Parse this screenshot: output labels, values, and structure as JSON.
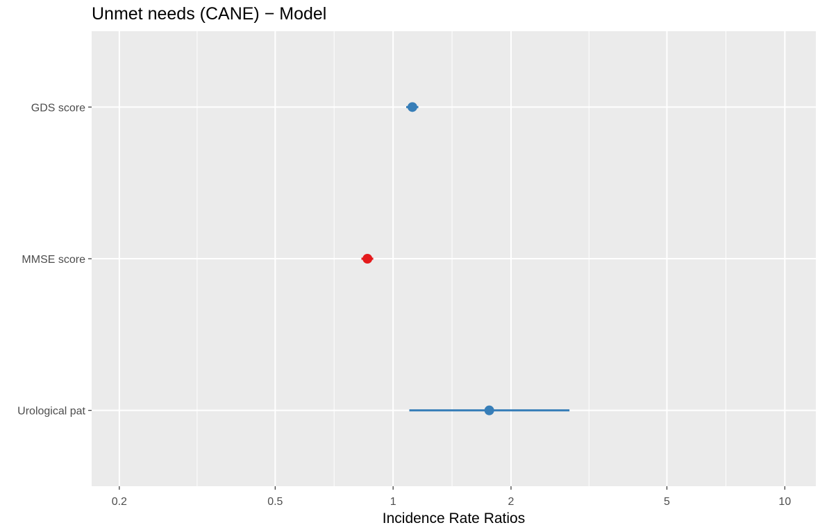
{
  "chart_data": {
    "type": "scatter",
    "subtype": "forest-plot",
    "title": "Unmet needs (CANE) − Model",
    "xlabel": "Incidence Rate Ratios",
    "ylabel": "",
    "x_scale": "log",
    "xlim": [
      0.17,
      12
    ],
    "x_ticks": [
      {
        "value": 0.2,
        "label": "0.2"
      },
      {
        "value": 0.5,
        "label": "0.5"
      },
      {
        "value": 1,
        "label": "1"
      },
      {
        "value": 2,
        "label": "2"
      },
      {
        "value": 5,
        "label": "5"
      },
      {
        "value": 10,
        "label": "10"
      }
    ],
    "x_minor_ticks": [
      0.316,
      0.707,
      1.414,
      3.162,
      7.071
    ],
    "grid": true,
    "legend": "none",
    "colors": {
      "increase": "#377eb8",
      "decrease": "#e41a1c"
    },
    "estimates": [
      {
        "term": "GDS score",
        "estimate": 1.12,
        "ci_low": 1.08,
        "ci_high": 1.16,
        "direction": "increase"
      },
      {
        "term": "MMSE score",
        "estimate": 0.86,
        "ci_low": 0.83,
        "ci_high": 0.89,
        "direction": "decrease"
      },
      {
        "term": "Urological pat",
        "estimate": 1.76,
        "ci_low": 1.1,
        "ci_high": 2.82,
        "direction": "increase"
      }
    ]
  }
}
